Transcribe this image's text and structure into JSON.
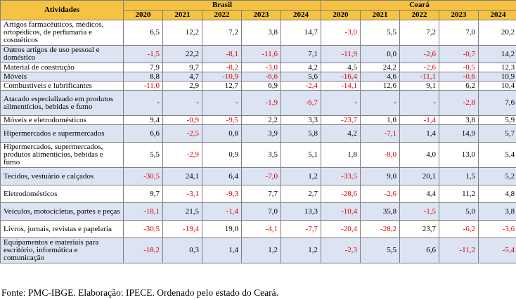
{
  "header": {
    "activities": "Atividades",
    "group_brasil": "Brasil",
    "group_ceara": "Ceará",
    "years": [
      "2020",
      "2021",
      "2022",
      "2023",
      "2024"
    ]
  },
  "negative_color": "#e00000",
  "header_color": "#f5c242",
  "stripe_color": "#dce3f2",
  "rows": [
    {
      "label": "Artigos farmacêuticos, médicos, ortopédicos, de perfumaria e cosméticos",
      "brasil": [
        "6,5",
        "12,2",
        "7,2",
        "3,8",
        "14,7"
      ],
      "ceara": [
        "-3,0",
        "5,5",
        "7,2",
        "7,0",
        "20,2"
      ]
    },
    {
      "label": "Outros artigos de uso pessoal e doméstico",
      "brasil": [
        "-1,5",
        "22,2",
        "-8,1",
        "-11,6",
        "7,1"
      ],
      "ceara": [
        "-11,9",
        "0,0",
        "-2,6",
        "-0,7",
        "14,2"
      ]
    },
    {
      "label": "Material de construção",
      "brasil": [
        "7,9",
        "9,7",
        "-8,2",
        "-3,0",
        "4,2"
      ],
      "ceara": [
        "4,5",
        "24,2",
        "-2,6",
        "-0,5",
        "12,3"
      ]
    },
    {
      "label": "Móveis",
      "brasil": [
        "8,8",
        "4,7",
        "-10,9",
        "-6,6",
        "5,6"
      ],
      "ceara": [
        "-16,4",
        "4,6",
        "-11,1",
        "-0,6",
        "10,9"
      ]
    },
    {
      "label": "Combustíveis e lubrificantes",
      "brasil": [
        "-11,0",
        "2,9",
        "12,7",
        "6,9",
        "-2,4"
      ],
      "ceara": [
        "-14,1",
        "12,6",
        "9,1",
        "6,2",
        "10,4"
      ]
    },
    {
      "label": "Atacado especializado em produtos alimentícios, bebidas e fumo",
      "brasil": [
        "-",
        "-",
        "-",
        "-1,9",
        "-6,7"
      ],
      "ceara": [
        "-",
        "-",
        "-",
        "-2,8",
        "7,6"
      ]
    },
    {
      "label": "Móveis e eletrodomésticos",
      "brasil": [
        "9,4",
        "-0,9",
        "-9,5",
        "2,2",
        "3,3"
      ],
      "ceara": [
        "-23,7",
        "1,0",
        "-1,4",
        "3,8",
        "5,9"
      ]
    },
    {
      "label": "Hipermercados e supermercados",
      "brasil": [
        "6,6",
        "-2,5",
        "0,8",
        "3,9",
        "5,8"
      ],
      "ceara": [
        "4,2",
        "-7,1",
        "1,4",
        "14,9",
        "5,7"
      ]
    },
    {
      "label": "Hipermercados, supermercados, produtos alimentícios, bebidas e fumo",
      "brasil": [
        "5,5",
        "-2,9",
        "0,9",
        "3,5",
        "5,1"
      ],
      "ceara": [
        "1,8",
        "-8,0",
        "4,0",
        "13,0",
        "5,4"
      ]
    },
    {
      "label": "Tecidos, vestuário e calçados",
      "brasil": [
        "-30,5",
        "24,1",
        "6,4",
        "-7,0",
        "1,2"
      ],
      "ceara": [
        "-33,5",
        "9,0",
        "20,1",
        "1,5",
        "5,2"
      ]
    },
    {
      "label": "Eletrodomésticos",
      "brasil": [
        "9,7",
        "-3,1",
        "-9,3",
        "7,7",
        "2,7"
      ],
      "ceara": [
        "-28,6",
        "-2,6",
        "4,4",
        "11,2",
        "4,8"
      ]
    },
    {
      "label": "Veículos, motocicletas, partes e peças",
      "brasil": [
        "-18,1",
        "21,5",
        "-1,4",
        "7,0",
        "13,3"
      ],
      "ceara": [
        "-10,4",
        "35,8",
        "-1,5",
        "5,0",
        "3,8"
      ]
    },
    {
      "label": "Livros, jornais, revistas e papelaria",
      "brasil": [
        "-30,5",
        "-19,4",
        "19,0",
        "-4,1",
        "-7,7"
      ],
      "ceara": [
        "-20,4",
        "-28,2",
        "23,7",
        "-6,2",
        "-3,6"
      ]
    },
    {
      "label": "Equipamentos e materiais para escritório, informática e comunicação",
      "brasil": [
        "-18,2",
        "0,3",
        "1,4",
        "1,2",
        "1,2"
      ],
      "ceara": [
        "-2,3",
        "5,5",
        "6,6",
        "-11,2",
        "-5,4"
      ]
    }
  ],
  "source": "Fonte: PMC-IBGE. Elaboração: IPECE. Ordenado pelo estado do Ceará."
}
